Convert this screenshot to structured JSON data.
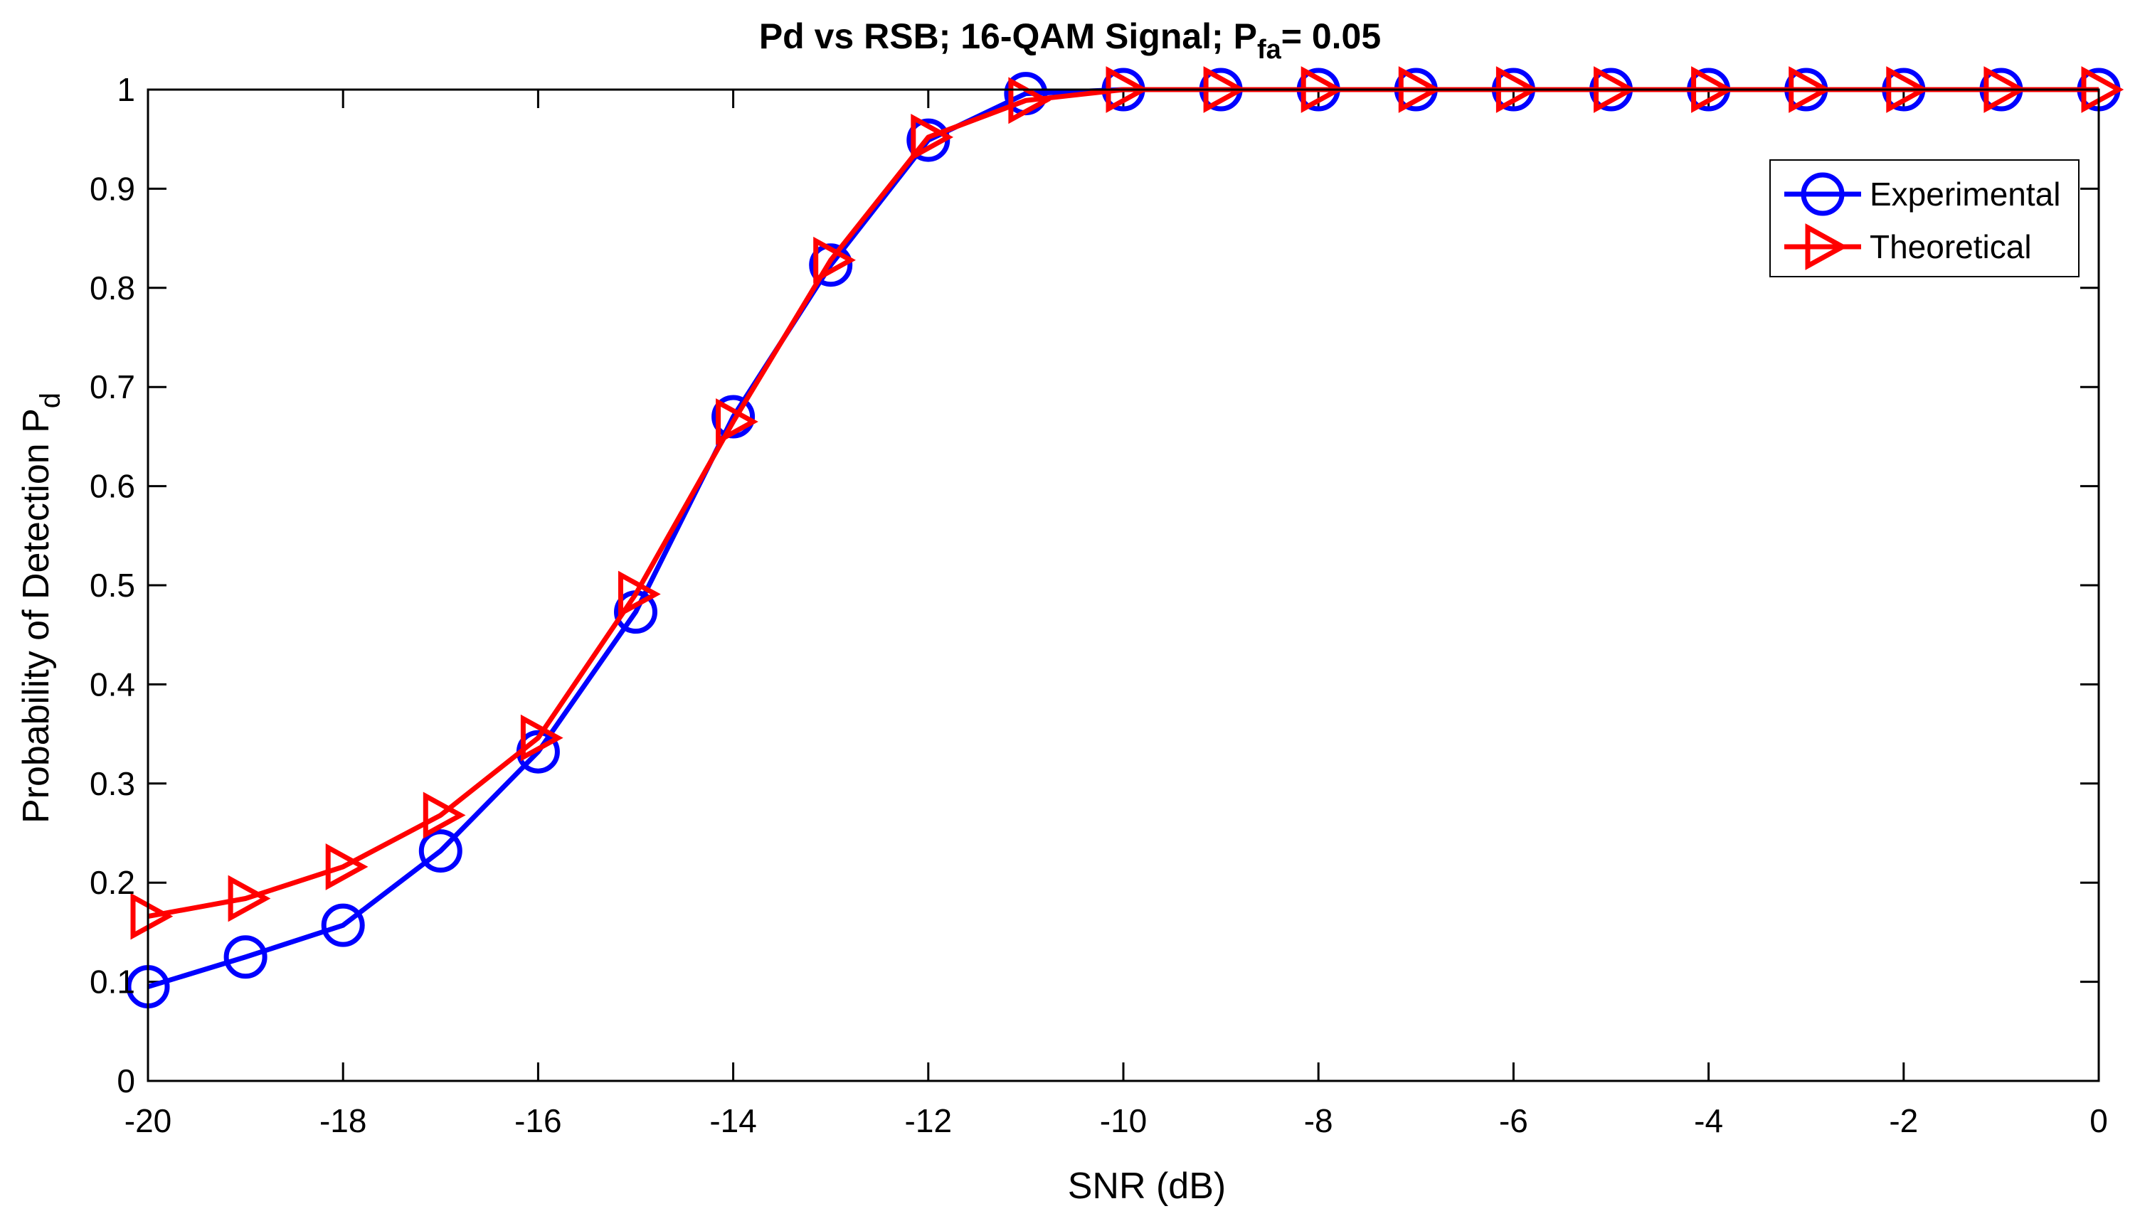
{
  "chart_data": {
    "type": "line",
    "title": {
      "main": "Pd vs RSB;  16-QAM Signal;  P",
      "sub": "fa",
      "tail": "= 0.05"
    },
    "xlabel": "SNR (dB)",
    "ylabel": {
      "main": "Probability of Detection P",
      "sub": "d"
    },
    "xlim": [
      -20,
      0
    ],
    "ylim": [
      0,
      1
    ],
    "xticks": [
      -20,
      -18,
      -16,
      -14,
      -12,
      -10,
      -8,
      -6,
      -4,
      -2,
      0
    ],
    "yticks": [
      0,
      0.1,
      0.2,
      0.3,
      0.4,
      0.5,
      0.6,
      0.7,
      0.8,
      0.9,
      1
    ],
    "ytick_labels": [
      "0",
      "0.1",
      "0.2",
      "0.3",
      "0.4",
      "0.5",
      "0.6",
      "0.7",
      "0.8",
      "0.9",
      "1"
    ],
    "grid": false,
    "legend_position": "top-right",
    "x": [
      -20,
      -19,
      -18,
      -17,
      -16,
      -15,
      -14,
      -13,
      -12,
      -11,
      -10,
      -9,
      -8,
      -7,
      -6,
      -5,
      -4,
      -3,
      -2,
      -1,
      0
    ],
    "series": [
      {
        "name": "Experimental",
        "color": "#0000ff",
        "marker": "circle",
        "values": [
          0.095,
          0.125,
          0.157,
          0.232,
          0.332,
          0.473,
          0.67,
          0.823,
          0.949,
          0.996,
          1,
          1,
          1,
          1,
          1,
          1,
          1,
          1,
          1,
          1,
          1
        ]
      },
      {
        "name": "Theoretical",
        "color": "#ff0000",
        "marker": "triangle-right",
        "values": [
          0.166,
          0.184,
          0.216,
          0.268,
          0.346,
          0.491,
          0.665,
          0.828,
          0.952,
          0.989,
          1,
          1,
          1,
          1,
          1,
          1,
          1,
          1,
          1,
          1,
          1
        ]
      }
    ]
  }
}
